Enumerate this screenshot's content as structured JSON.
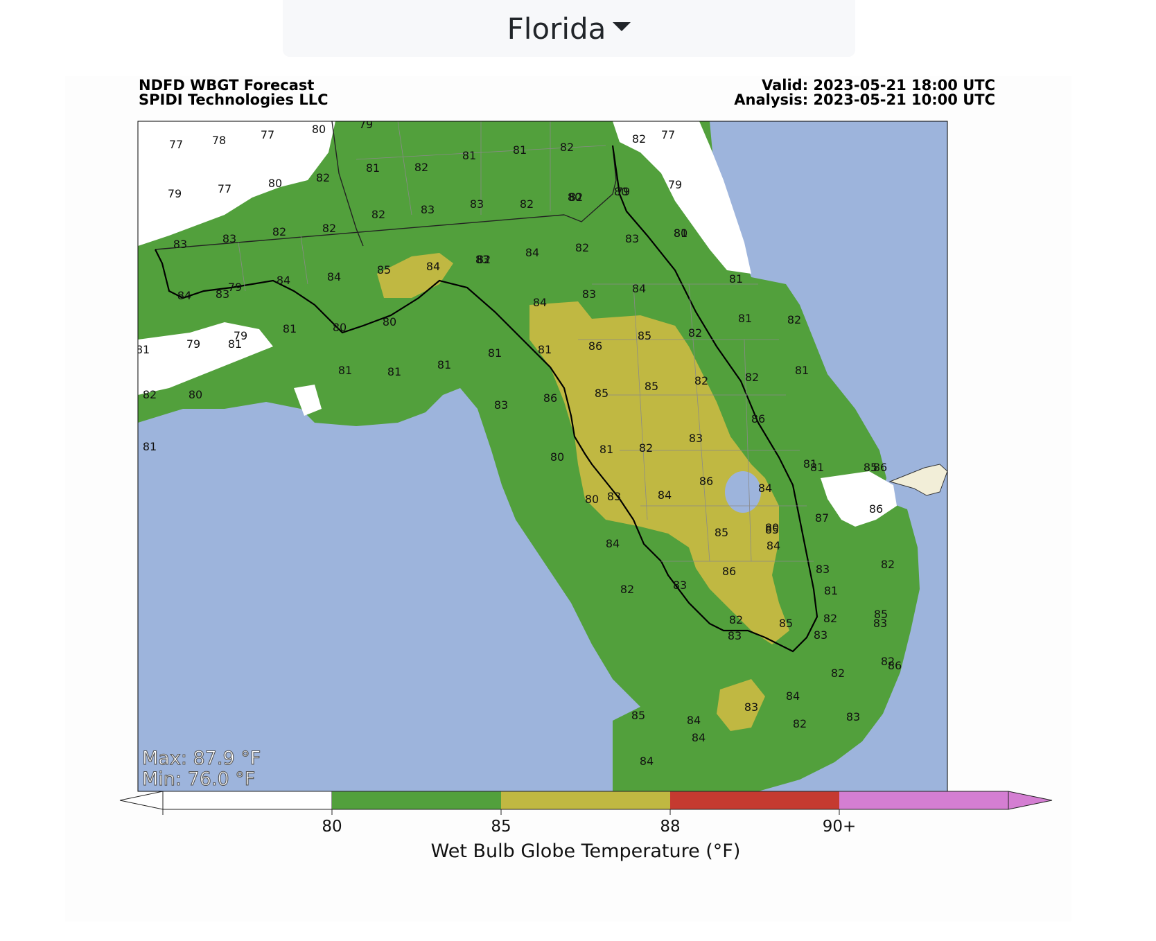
{
  "selector": {
    "label": "Florida"
  },
  "header": {
    "title": "NDFD WBGT Forecast",
    "subtitle": "SPIDI Technologies LLC",
    "valid": "Valid: 2023-05-21 18:00 UTC",
    "analysis": "Analysis: 2023-05-21 10:00 UTC"
  },
  "stats": {
    "max": "Max: 87.9 °F",
    "min": "Min: 76.0 °F"
  },
  "colorbar": {
    "label": "Wet Bulb Globe Temperature (°F)",
    "ticks": [
      "80",
      "85",
      "88",
      "90+"
    ],
    "colors": {
      "below": "#ffffff",
      "c80_85": "#52a03c",
      "c85_88": "#c0b842",
      "c88_90": "#c53a30",
      "c90_plus": "#d47ed2"
    }
  },
  "map_colors": {
    "water": "#9db4dc",
    "white": "#ffffff",
    "bahamas": "#f2eed8"
  },
  "map_values": [
    "77",
    "78",
    "77",
    "80",
    "79",
    "77",
    "79",
    "77",
    "80",
    "79",
    "79",
    "80",
    "82",
    "81",
    "82",
    "81",
    "81",
    "82",
    "82",
    "83",
    "83",
    "82",
    "82",
    "80",
    "80",
    "81",
    "82",
    "82",
    "82",
    "83",
    "83",
    "82",
    "83",
    "83",
    "84",
    "84",
    "85",
    "84",
    "82",
    "84",
    "80",
    "83",
    "84",
    "79",
    "81",
    "80",
    "79",
    "79",
    "81",
    "80",
    "81",
    "81",
    "81",
    "81",
    "81",
    "84",
    "84",
    "83",
    "81",
    "86",
    "85",
    "82",
    "82",
    "81",
    "81",
    "81",
    "82",
    "83",
    "86",
    "85",
    "85",
    "82",
    "82",
    "81",
    "80",
    "81",
    "82",
    "83",
    "86",
    "86",
    "84",
    "81",
    "81",
    "80",
    "87",
    "86",
    "86",
    "85",
    "80",
    "84",
    "83",
    "85",
    "85",
    "84",
    "83",
    "81",
    "82",
    "84",
    "86",
    "82",
    "85",
    "82",
    "83",
    "82",
    "83",
    "85",
    "83",
    "82",
    "82",
    "83",
    "84",
    "86",
    "83",
    "84",
    "85",
    "84",
    "84",
    "83",
    "82"
  ]
}
